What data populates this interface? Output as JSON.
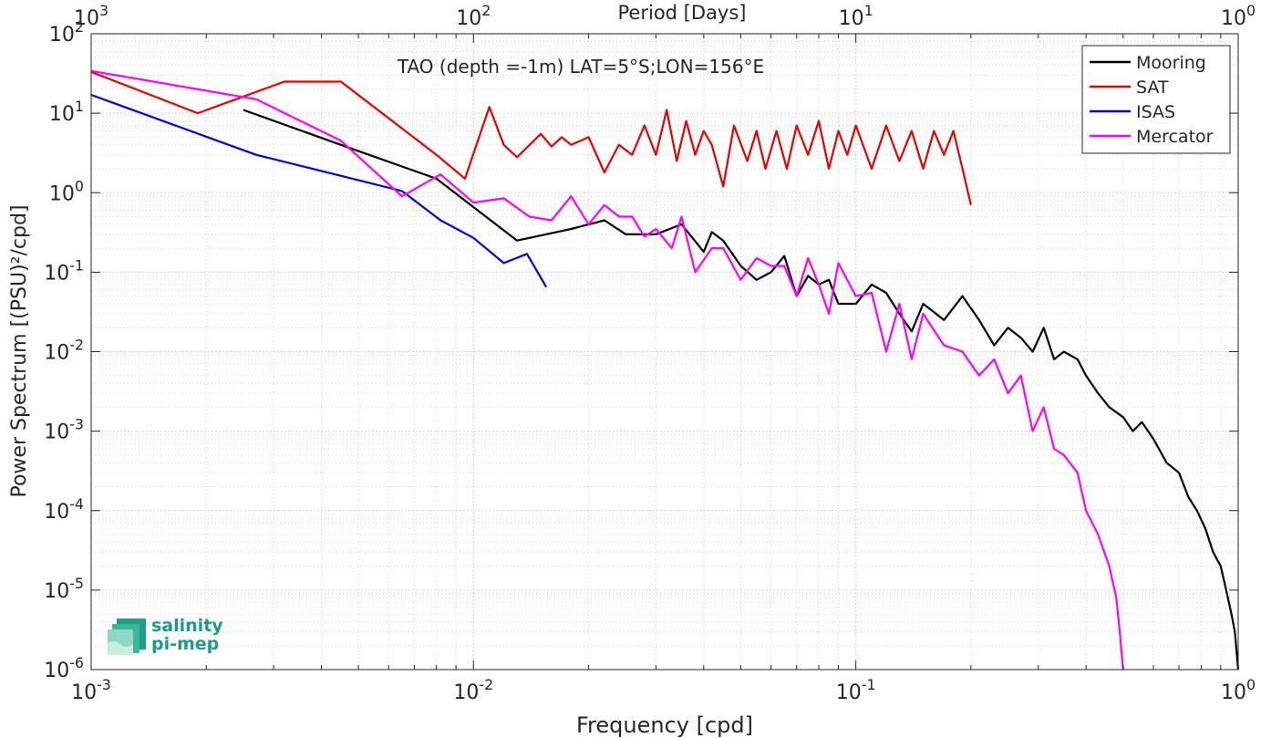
{
  "chart_data": {
    "type": "line",
    "title": "TAO (depth =-1m) LAT=5°S;LON=156°E",
    "xlabel": "Frequency [cpd]",
    "ylabel": "Power Spectrum [(PSU)²/cpd]",
    "top_xlabel": "Period [Days]",
    "x_scale": "log",
    "y_scale": "log",
    "xlim": [
      0.001,
      1
    ],
    "ylim": [
      1e-06,
      100
    ],
    "grid": true,
    "legend_position": "top-right",
    "x_ticks": [
      {
        "base": "10",
        "exp": "-3"
      },
      {
        "base": "10",
        "exp": "-2"
      },
      {
        "base": "10",
        "exp": "-1"
      },
      {
        "base": "10",
        "exp": "0"
      }
    ],
    "top_ticks": [
      {
        "base": "10",
        "exp": "3"
      },
      {
        "base": "10",
        "exp": "2"
      },
      {
        "base": "10",
        "exp": "1"
      },
      {
        "base": "10",
        "exp": "0"
      }
    ],
    "y_ticks": [
      {
        "base": "10",
        "exp": "-6"
      },
      {
        "base": "10",
        "exp": "-5"
      },
      {
        "base": "10",
        "exp": "-4"
      },
      {
        "base": "10",
        "exp": "-3"
      },
      {
        "base": "10",
        "exp": "-2"
      },
      {
        "base": "10",
        "exp": "-1"
      },
      {
        "base": "10",
        "exp": "0"
      },
      {
        "base": "10",
        "exp": "1"
      },
      {
        "base": "10",
        "exp": "2"
      }
    ],
    "series": [
      {
        "name": "Mooring",
        "color": "#000000",
        "x": [
          0.0025,
          0.0045,
          0.008,
          0.013,
          0.018,
          0.022,
          0.025,
          0.03,
          0.035,
          0.04,
          0.042,
          0.045,
          0.05,
          0.055,
          0.06,
          0.065,
          0.07,
          0.075,
          0.08,
          0.085,
          0.09,
          0.1,
          0.11,
          0.12,
          0.13,
          0.14,
          0.15,
          0.17,
          0.19,
          0.21,
          0.23,
          0.25,
          0.27,
          0.29,
          0.31,
          0.33,
          0.35,
          0.38,
          0.4,
          0.43,
          0.46,
          0.5,
          0.53,
          0.56,
          0.6,
          0.65,
          0.7,
          0.74,
          0.78,
          0.82,
          0.86,
          0.9,
          0.93,
          0.96,
          0.98,
          1.0
        ],
        "values": [
          11,
          4,
          1.5,
          0.25,
          0.35,
          0.45,
          0.3,
          0.3,
          0.4,
          0.18,
          0.32,
          0.25,
          0.12,
          0.08,
          0.1,
          0.16,
          0.05,
          0.09,
          0.07,
          0.08,
          0.04,
          0.04,
          0.07,
          0.055,
          0.03,
          0.018,
          0.04,
          0.025,
          0.05,
          0.025,
          0.012,
          0.02,
          0.015,
          0.01,
          0.02,
          0.008,
          0.01,
          0.008,
          0.005,
          0.003,
          0.002,
          0.0015,
          0.001,
          0.0013,
          0.0008,
          0.0004,
          0.0003,
          0.00015,
          0.0001,
          6e-05,
          3e-05,
          2e-05,
          1e-05,
          5e-06,
          3e-06,
          1e-06
        ]
      },
      {
        "name": "SAT",
        "color": "#e60000",
        "x": [
          0.001,
          0.0019,
          0.0032,
          0.0045,
          0.008,
          0.0095,
          0.011,
          0.012,
          0.013,
          0.015,
          0.016,
          0.017,
          0.018,
          0.02,
          0.022,
          0.024,
          0.026,
          0.028,
          0.03,
          0.032,
          0.034,
          0.036,
          0.038,
          0.04,
          0.042,
          0.045,
          0.048,
          0.052,
          0.055,
          0.058,
          0.062,
          0.066,
          0.07,
          0.075,
          0.08,
          0.085,
          0.09,
          0.095,
          0.1,
          0.11,
          0.12,
          0.13,
          0.14,
          0.15,
          0.16,
          0.17,
          0.18,
          0.19,
          0.2
        ],
        "values": [
          33,
          10,
          25,
          25,
          3,
          1.5,
          12,
          4,
          2.8,
          5.5,
          3.8,
          5,
          4,
          5,
          1.8,
          4,
          3,
          7,
          3,
          11,
          2.5,
          8,
          3,
          6,
          4,
          1.2,
          7,
          2.5,
          6,
          2,
          6,
          2,
          7,
          3,
          8,
          2,
          6,
          3,
          7,
          2,
          7,
          2.5,
          6,
          2,
          6,
          3,
          6,
          2,
          0.7
        ]
      },
      {
        "name": "ISAS",
        "color": "#0000e6",
        "x": [
          0.001,
          0.0027,
          0.0065,
          0.0082,
          0.01,
          0.012,
          0.0138,
          0.0155
        ],
        "values": [
          17,
          3,
          1.05,
          0.45,
          0.27,
          0.13,
          0.17,
          0.065
        ]
      },
      {
        "name": "Mercator",
        "color": "#ff00ff",
        "x": [
          0.001,
          0.0027,
          0.0045,
          0.0065,
          0.0082,
          0.01,
          0.012,
          0.014,
          0.016,
          0.018,
          0.02,
          0.022,
          0.024,
          0.026,
          0.028,
          0.03,
          0.033,
          0.035,
          0.038,
          0.042,
          0.045,
          0.05,
          0.055,
          0.06,
          0.065,
          0.07,
          0.075,
          0.08,
          0.085,
          0.09,
          0.1,
          0.11,
          0.12,
          0.13,
          0.14,
          0.15,
          0.17,
          0.19,
          0.21,
          0.23,
          0.25,
          0.27,
          0.29,
          0.31,
          0.33,
          0.35,
          0.38,
          0.4,
          0.43,
          0.46,
          0.48,
          0.49,
          0.5
        ],
        "values": [
          34,
          15,
          4.5,
          0.9,
          1.7,
          0.75,
          0.85,
          0.5,
          0.45,
          0.9,
          0.4,
          0.7,
          0.5,
          0.5,
          0.28,
          0.35,
          0.2,
          0.5,
          0.1,
          0.2,
          0.2,
          0.08,
          0.15,
          0.12,
          0.12,
          0.05,
          0.15,
          0.07,
          0.03,
          0.13,
          0.05,
          0.055,
          0.01,
          0.04,
          0.008,
          0.03,
          0.012,
          0.01,
          0.005,
          0.008,
          0.003,
          0.005,
          0.001,
          0.002,
          0.0006,
          0.0005,
          0.0003,
          0.0001,
          5e-05,
          2e-05,
          8e-06,
          3e-06,
          1e-06
        ]
      }
    ]
  },
  "logo": {
    "line1": "salinity",
    "line2": "pi-mep"
  }
}
